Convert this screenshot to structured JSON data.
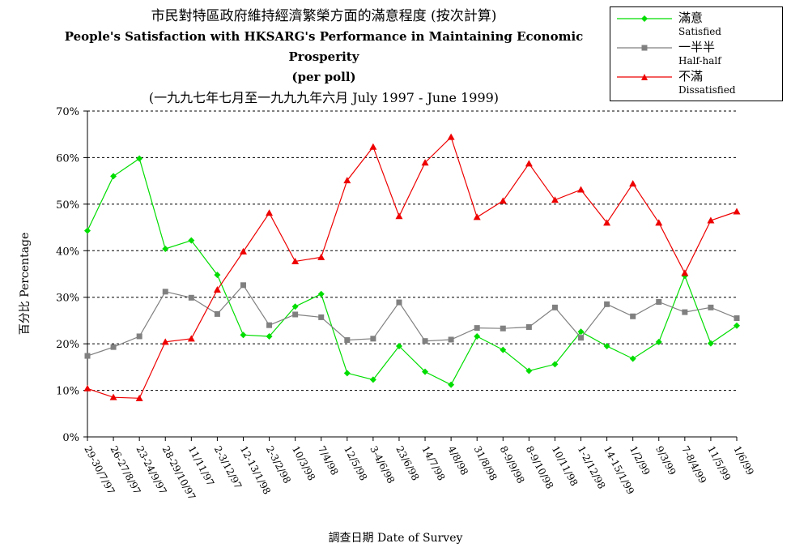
{
  "chart_data": {
    "type": "line",
    "title": "市民對特區政府維持經濟繁榮方面的滿意程度 (按次計算)",
    "subtitle": "People's Satisfaction with HKSARG's Performance in Maintaining Economic Prosperity",
    "subtitle2": "(per poll)",
    "subtitle3": "(一九九七年七月至一九九九年六月 July 1997 - June 1999)",
    "xlabel": "調查日期 Date of Survey",
    "ylabel": "百分比 Percentage",
    "ylim": [
      0,
      70
    ],
    "yticks": [
      "0%",
      "10%",
      "20%",
      "30%",
      "40%",
      "50%",
      "60%",
      "70%"
    ],
    "grid": "horizontal-dashed",
    "legend_position": "top-right",
    "categories": [
      "29-30/7/97",
      "26-27/8/97",
      "23-24/9/97",
      "28-29/10/97",
      "11/11/97",
      "2-3/12/97",
      "12-13/1/98",
      "2-3/2/98",
      "10/3/98",
      "7/4/98",
      "12/5/98",
      "3-4/6/98",
      "23/6/98",
      "14/7/98",
      "4/8/98",
      "31/8/98",
      "8-9/9/98",
      "8-9/10/98",
      "10/11/98",
      "1-2/12/98",
      "14-15/1/99",
      "1/2/99",
      "9/3/99",
      "7-8/4/99",
      "11/5/99",
      "1/6/99"
    ],
    "series": [
      {
        "name": "滿意",
        "name_en": "Satisfied",
        "color": "#00dd00",
        "marker": "diamond",
        "values": [
          44.3,
          56.0,
          59.8,
          40.4,
          42.2,
          34.8,
          21.9,
          21.6,
          28.0,
          30.7,
          13.7,
          12.3,
          19.5,
          14.0,
          11.2,
          21.6,
          18.7,
          14.2,
          15.6,
          22.6,
          19.5,
          16.8,
          20.4,
          34.6,
          20.1,
          23.9
        ]
      },
      {
        "name": "一半半",
        "name_en": "Half-half",
        "color": "#808080",
        "marker": "square",
        "values": [
          17.4,
          19.3,
          21.6,
          31.2,
          29.9,
          26.4,
          32.6,
          24.0,
          26.3,
          25.7,
          20.8,
          21.1,
          28.9,
          20.6,
          20.9,
          23.4,
          23.3,
          23.6,
          27.8,
          21.3,
          28.5,
          25.9,
          29.0,
          26.8,
          27.8,
          25.5
        ]
      },
      {
        "name": "不滿",
        "name_en": "Dissatisfied",
        "color": "#ee0000",
        "marker": "triangle",
        "values": [
          10.4,
          8.5,
          8.3,
          20.4,
          21.1,
          31.6,
          39.8,
          48.1,
          37.7,
          38.6,
          55.1,
          62.3,
          47.4,
          58.9,
          64.4,
          47.2,
          50.7,
          58.7,
          50.9,
          53.1,
          46.0,
          54.4,
          46.0,
          35.2,
          46.5,
          48.4
        ]
      }
    ]
  }
}
